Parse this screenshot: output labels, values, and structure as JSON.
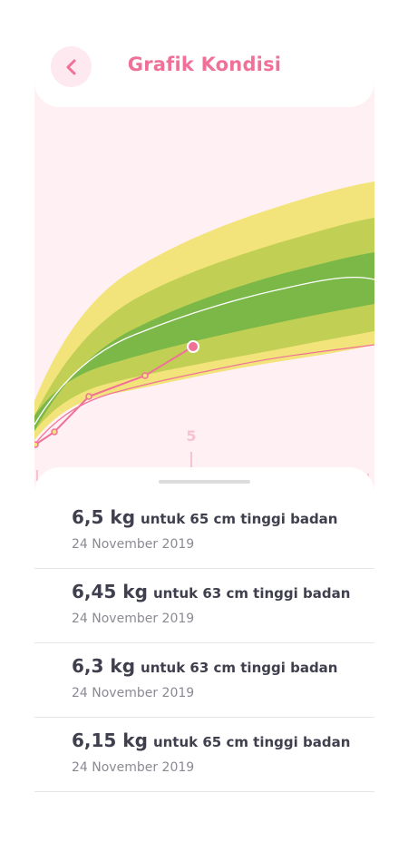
{
  "header": {
    "title": "Grafik Kondisi",
    "back_icon": "chevron-left-icon"
  },
  "colors": {
    "accent": "#f07198",
    "background": "#fff0f4",
    "band_outer": "#f2e47a",
    "band_mid": "#c1d055",
    "band_inner": "#7bb848",
    "median_line": "#ffffff",
    "lower_line": "#f07198"
  },
  "chart_data": {
    "type": "line",
    "x_tick_label": "5",
    "measurements": [
      {
        "weight": "6,5 kg",
        "height_text": "untuk 65 cm tinggi badan",
        "date": "24 November 2019"
      },
      {
        "weight": "6,45 kg",
        "height_text": "untuk 63 cm tinggi badan",
        "date": "24 November 2019"
      },
      {
        "weight": "6,3 kg",
        "height_text": "untuk 63 cm tinggi badan",
        "date": "24 November 2019"
      },
      {
        "weight": "6,15 kg",
        "height_text": "untuk 65 cm tinggi badan",
        "date": "24 November 2019"
      }
    ]
  }
}
